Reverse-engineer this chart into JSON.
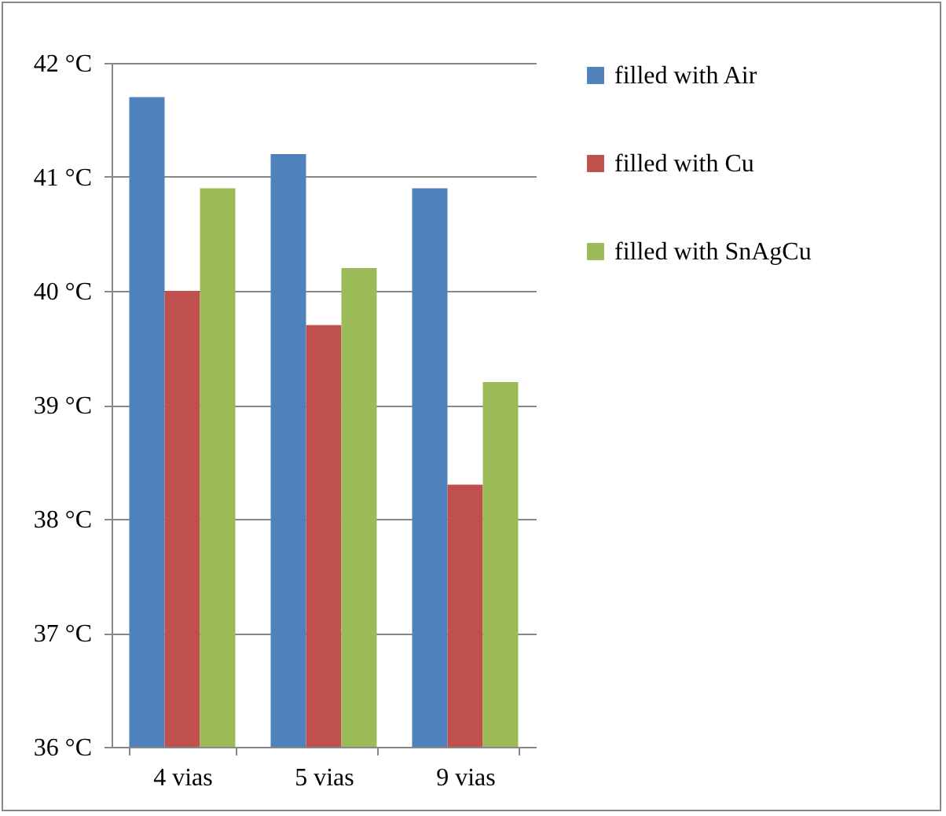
{
  "chart_data": {
    "type": "bar",
    "categories": [
      "4 vias",
      "5 vias",
      "9 vias"
    ],
    "series": [
      {
        "name": "filled with Air",
        "color": "#4f81bd",
        "values": [
          41.7,
          41.2,
          40.9
        ]
      },
      {
        "name": "filled with Cu",
        "color": "#c0504d",
        "values": [
          40.0,
          39.7,
          38.3
        ]
      },
      {
        "name": "filled with SnAgCu",
        "color": "#9bbb59",
        "values": [
          40.9,
          40.2,
          39.2
        ]
      }
    ],
    "ylim": [
      36,
      42
    ],
    "yticks": [
      {
        "value": 36,
        "label": "36 °C"
      },
      {
        "value": 37,
        "label": "37 °C"
      },
      {
        "value": 38,
        "label": "38 °C"
      },
      {
        "value": 39,
        "label": "39 °C"
      },
      {
        "value": 40,
        "label": "40 °C"
      },
      {
        "value": 41,
        "label": "41 °C"
      },
      {
        "value": 42,
        "label": "42 °C"
      }
    ],
    "grid": "y",
    "legend": "right"
  }
}
